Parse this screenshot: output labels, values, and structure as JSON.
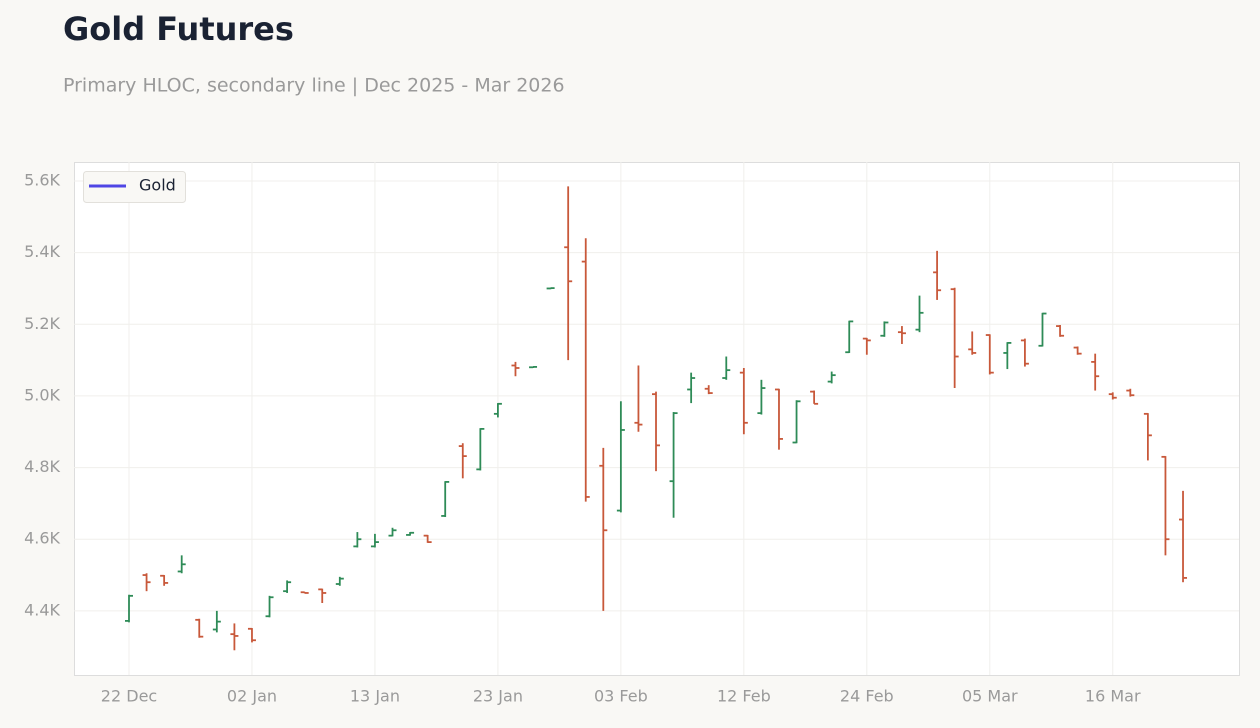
{
  "chart_data": {
    "type": "ohlc",
    "title": "Gold Futures",
    "subtitle": "Primary HLOC, secondary line | Dec 2025 - Mar 2026",
    "categories": [
      "22 Dec",
      null,
      null,
      null,
      null,
      null,
      null,
      "02 Jan",
      null,
      null,
      null,
      null,
      null,
      null,
      "13 Jan",
      null,
      null,
      null,
      null,
      null,
      null,
      "23 Jan",
      null,
      null,
      null,
      null,
      null,
      null,
      "03 Feb",
      null,
      null,
      null,
      null,
      null,
      null,
      "12 Feb",
      null,
      null,
      null,
      null,
      null,
      null,
      "24 Feb",
      null,
      null,
      null,
      null,
      null,
      null,
      "05 Mar",
      null,
      null,
      null,
      null,
      null,
      null,
      "16 Mar",
      null,
      null,
      null,
      null
    ],
    "open": [
      4372,
      4500,
      4498,
      4510,
      4375,
      4348,
      4335,
      4350,
      4385,
      4455,
      4452,
      4460,
      4475,
      4580,
      4580,
      4610,
      4612,
      4610,
      4665,
      4860,
      4795,
      4950,
      5085,
      5080,
      5300,
      5415,
      5375,
      4805,
      4680,
      4925,
      5005,
      4762,
      5018,
      5020,
      5050,
      5065,
      4952,
      5018,
      4870,
      5012,
      5040,
      5122,
      5160,
      5168,
      5178,
      5185,
      5345,
      5298,
      5130,
      5170,
      5120,
      5155,
      5140,
      5195,
      5135,
      5095,
      5005,
      5015,
      4950,
      4830,
      4655
    ],
    "high": [
      4445,
      4505,
      4500,
      4555,
      4378,
      4400,
      4365,
      4352,
      4442,
      4485,
      4453,
      4462,
      4495,
      4620,
      4615,
      4632,
      4620,
      4612,
      4762,
      4868,
      4910,
      4980,
      5095,
      5082,
      5302,
      5585,
      5440,
      4855,
      4985,
      5085,
      5012,
      4955,
      5065,
      5030,
      5110,
      5078,
      5045,
      5020,
      4988,
      5015,
      5068,
      5210,
      5162,
      5208,
      5195,
      5280,
      5405,
      5302,
      5180,
      5172,
      5150,
      5160,
      5232,
      5198,
      5138,
      5118,
      5010,
      5020,
      4952,
      4832,
      4735
    ],
    "low": [
      4368,
      4455,
      4470,
      4505,
      4325,
      4340,
      4290,
      4312,
      4382,
      4450,
      4449,
      4422,
      4470,
      4577,
      4577,
      4608,
      4610,
      4590,
      4662,
      4770,
      4792,
      4940,
      5055,
      5078,
      5298,
      5100,
      4705,
      4400,
      4675,
      4900,
      4790,
      4660,
      4980,
      5005,
      5045,
      4893,
      4948,
      4850,
      4868,
      4978,
      5035,
      5120,
      5115,
      5165,
      5145,
      5178,
      5268,
      5022,
      5115,
      5060,
      5075,
      5082,
      5138,
      5165,
      5115,
      5015,
      4990,
      4998,
      4820,
      4555,
      4480
    ],
    "close": [
      4442,
      4480,
      4478,
      4530,
      4328,
      4370,
      4330,
      4318,
      4438,
      4480,
      4450,
      4450,
      4490,
      4600,
      4592,
      4625,
      4618,
      4592,
      4760,
      4832,
      4908,
      4978,
      5078,
      5081,
      5301,
      5320,
      4718,
      4625,
      4905,
      4920,
      4862,
      4952,
      5050,
      5008,
      5072,
      4925,
      5022,
      4880,
      4985,
      4978,
      5058,
      5208,
      5155,
      5205,
      5175,
      5232,
      5295,
      5110,
      5120,
      5065,
      5148,
      5090,
      5230,
      5168,
      5118,
      5055,
      4995,
      5002,
      4890,
      4600,
      4492
    ],
    "up_color": "#2e8b57",
    "down_color": "#c8583a",
    "legend_series": [
      {
        "name": "Gold",
        "color": "#4f46e5"
      }
    ],
    "legend_position": "upper left",
    "ylim": [
      4221,
      5653
    ],
    "yticks": [
      {
        "value": 4400,
        "label": "4.4K"
      },
      {
        "value": 4600,
        "label": "4.6K"
      },
      {
        "value": 4800,
        "label": "4.8K"
      },
      {
        "value": 5000,
        "label": "5.0K"
      },
      {
        "value": 5200,
        "label": "5.2K"
      },
      {
        "value": 5400,
        "label": "5.4K"
      },
      {
        "value": 5600,
        "label": "5.6K"
      }
    ],
    "grid": true
  }
}
